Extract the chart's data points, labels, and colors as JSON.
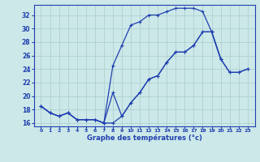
{
  "xlabel": "Graphe des températures (°c)",
  "hours": [
    0,
    1,
    2,
    3,
    4,
    5,
    6,
    7,
    8,
    9,
    10,
    11,
    12,
    13,
    14,
    15,
    16,
    17,
    18,
    19,
    20,
    21,
    22,
    23
  ],
  "line_top": [
    18.5,
    17.5,
    17.0,
    17.5,
    16.5,
    16.5,
    16.5,
    16.0,
    24.5,
    27.5,
    30.5,
    31.0,
    32.0,
    32.0,
    32.5,
    33.0,
    33.0,
    33.0,
    32.5,
    29.5,
    25.5,
    null,
    null,
    null
  ],
  "line_mid": [
    18.5,
    17.5,
    17.0,
    17.5,
    16.5,
    16.5,
    16.5,
    16.0,
    16.0,
    17.0,
    19.0,
    20.5,
    22.5,
    23.0,
    25.0,
    26.5,
    26.5,
    27.5,
    29.5,
    29.5,
    25.5,
    23.5,
    23.5,
    24.0
  ],
  "line_bot": [
    18.5,
    17.5,
    17.0,
    17.5,
    16.5,
    16.5,
    16.5,
    16.0,
    20.5,
    17.0,
    19.0,
    20.5,
    22.5,
    23.0,
    25.0,
    26.5,
    26.5,
    27.5,
    29.5,
    29.5,
    25.5,
    23.5,
    23.5,
    24.0
  ],
  "background_color": "#cce8e8",
  "grid_color": "#aacccc",
  "line_color": "#2040b0",
  "ylim": [
    15.5,
    33.5
  ],
  "ytick_vals": [
    16,
    18,
    20,
    22,
    24,
    26,
    28,
    30,
    32
  ],
  "xtick_vals": [
    0,
    1,
    2,
    3,
    4,
    5,
    6,
    7,
    8,
    9,
    10,
    11,
    12,
    13,
    14,
    15,
    16,
    17,
    18,
    19,
    20,
    21,
    22,
    23
  ]
}
